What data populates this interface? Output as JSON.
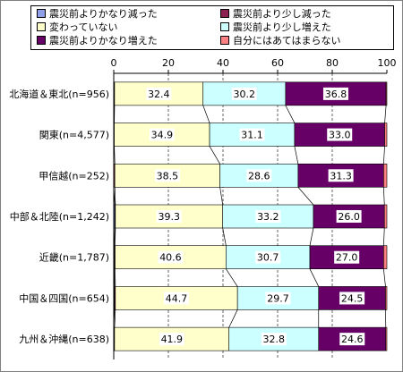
{
  "chart_data": {
    "type": "bar",
    "orientation": "horizontal",
    "stacked": true,
    "xlim": [
      0,
      100
    ],
    "xticks": [
      "0",
      "20",
      "40",
      "60",
      "80",
      "100"
    ],
    "grid": true,
    "series_connector_lines": true,
    "legend_position": "top",
    "categories": [
      "北海道＆東北(n=956)",
      "関東(n=4,577)",
      "甲信越(n=252)",
      "中部＆北陸(n=1,242)",
      "近畿(n=1,787)",
      "中国＆四国(n=654)",
      "九州＆沖縄(n=638)"
    ],
    "series": [
      {
        "name": "震災前よりかなり減った",
        "color": "#8ea0e8",
        "values": [
          0.2,
          0.1,
          0.0,
          0.4,
          0.2,
          0.3,
          0.0
        ]
      },
      {
        "name": "震災前より少し減った",
        "color": "#8b2252",
        "values": [
          0.1,
          0.1,
          0.4,
          0.2,
          0.3,
          0.3,
          0.3
        ]
      },
      {
        "name": "変わっていない",
        "color": "#ffffcc",
        "values": [
          32.4,
          34.9,
          38.5,
          39.3,
          40.6,
          44.7,
          41.9
        ]
      },
      {
        "name": "震災前より少し増えた",
        "color": "#ccffff",
        "values": [
          30.2,
          31.1,
          28.6,
          33.2,
          30.7,
          29.7,
          32.8
        ]
      },
      {
        "name": "震災前よりかなり増えた",
        "color": "#660066",
        "values": [
          36.8,
          33.0,
          31.3,
          26.0,
          27.0,
          24.5,
          24.6
        ]
      },
      {
        "name": "自分にはあてはまらない",
        "color": "#ff8080",
        "values": [
          0.3,
          0.8,
          1.2,
          0.9,
          1.2,
          0.5,
          0.4
        ]
      }
    ],
    "data_labels": [
      "変わっていない",
      "震災前より少し増えた",
      "震災前よりかなり増えた"
    ]
  }
}
